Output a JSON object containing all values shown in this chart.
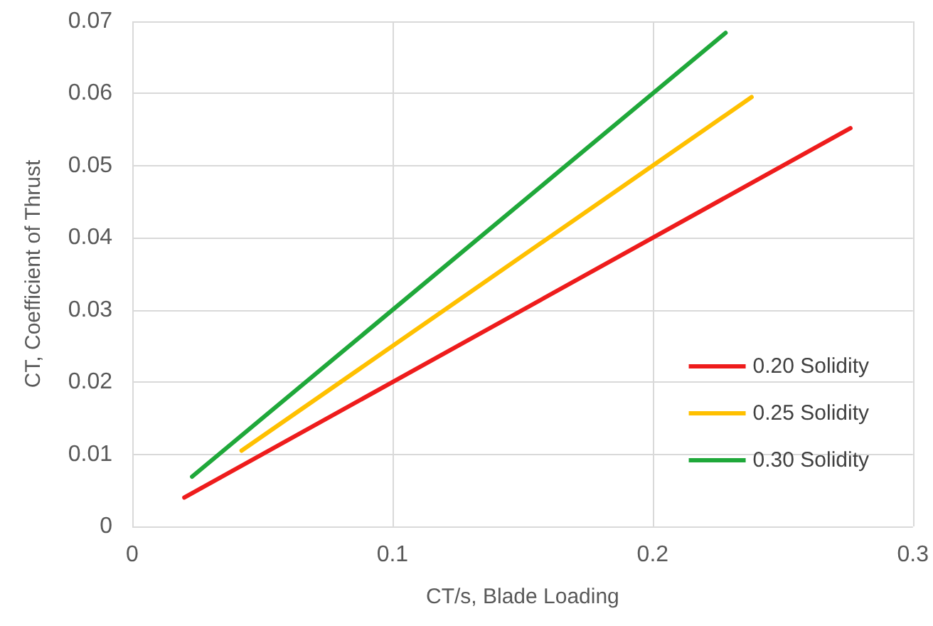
{
  "chart_data": {
    "type": "line",
    "xlabel": "CT/s, Blade Loading",
    "ylabel": "CT, Coefficient of Thrust",
    "xlim": [
      0,
      0.3
    ],
    "xticks": [
      0,
      0.1,
      0.2,
      0.3
    ],
    "ylim": [
      0,
      0.07
    ],
    "yticks": [
      0,
      0.01,
      0.02,
      0.03,
      0.04,
      0.05,
      0.06,
      0.07
    ],
    "grid": true,
    "legend": "right",
    "marker": "none",
    "series": [
      {
        "name": "0.20 Solidity",
        "color": "#ee1c1c",
        "x": [
          0.02,
          0.276
        ],
        "values": [
          0.004,
          0.0552
        ]
      },
      {
        "name": "0.25 Solidity",
        "color": "#ffc000",
        "x": [
          0.042,
          0.238
        ],
        "values": [
          0.0105,
          0.0595
        ]
      },
      {
        "name": "0.30 Solidity",
        "color": "#1fa83a",
        "x": [
          0.023,
          0.228
        ],
        "values": [
          0.0069,
          0.0684
        ]
      }
    ]
  }
}
